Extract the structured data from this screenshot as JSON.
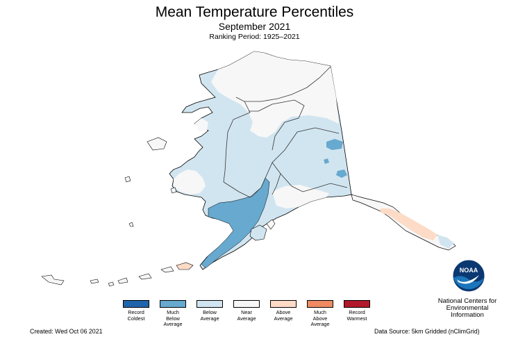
{
  "title": "Mean Temperature Percentiles",
  "subtitle": "September 2021",
  "ranking_period": "Ranking Period: 1925–2021",
  "legend": [
    {
      "label": "Record\nColdest",
      "color": "#2166ac"
    },
    {
      "label": "Much\nBelow\nAverage",
      "color": "#67a9cf"
    },
    {
      "label": "Below\nAverage",
      "color": "#d1e5f0"
    },
    {
      "label": "Near\nAverage",
      "color": "#f7f7f7"
    },
    {
      "label": "Above\nAverage",
      "color": "#fddbc7"
    },
    {
      "label": "Much\nAbove\nAverage",
      "color": "#ef8a62"
    },
    {
      "label": "Record\nWarmest",
      "color": "#b2182b"
    }
  ],
  "created": "Created: Wed Oct 06 2021",
  "data_source": "Data Source: 5km Gridded (nClimGrid)",
  "agency": "National Centers for\nEnvironmental\nInformation",
  "logo_text": "NOAA",
  "colors": {
    "near_average": "#f7f7f7",
    "below_average": "#d1e5f0",
    "much_below_average": "#67a9cf",
    "above_average": "#fddbc7",
    "much_above_average": "#ef8a62",
    "noaa_blue": "#1b75bb",
    "noaa_navy": "#0a3871"
  }
}
